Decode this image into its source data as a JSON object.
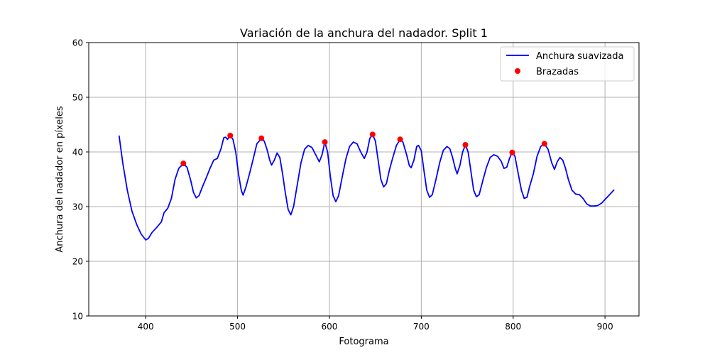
{
  "chart_data": {
    "type": "line",
    "title": "Variación de la anchura del nadador. Split 1",
    "xlabel": "Fotograma",
    "ylabel": "Anchura del nadador en píxeles",
    "xlim": [
      338,
      937
    ],
    "ylim": [
      10,
      60
    ],
    "xticks": [
      400,
      500,
      600,
      700,
      800,
      900
    ],
    "yticks": [
      10,
      20,
      30,
      40,
      50,
      60
    ],
    "grid": true,
    "legend_position": "top-right",
    "series": [
      {
        "name": "Anchura suavizada",
        "kind": "line",
        "color": "#0000ff",
        "points": [
          [
            371,
            43.0
          ],
          [
            375,
            38.0
          ],
          [
            380,
            33.0
          ],
          [
            385,
            29.2
          ],
          [
            390,
            26.8
          ],
          [
            395,
            25.0
          ],
          [
            400,
            23.9
          ],
          [
            403,
            24.2
          ],
          [
            407,
            25.3
          ],
          [
            412,
            26.2
          ],
          [
            417,
            27.2
          ],
          [
            420,
            28.9
          ],
          [
            424,
            29.7
          ],
          [
            428,
            31.5
          ],
          [
            432,
            35.0
          ],
          [
            436,
            37.0
          ],
          [
            441,
            37.9
          ],
          [
            445,
            37.2
          ],
          [
            449,
            34.8
          ],
          [
            452,
            32.6
          ],
          [
            455,
            31.6
          ],
          [
            458,
            32.0
          ],
          [
            462,
            33.7
          ],
          [
            466,
            35.3
          ],
          [
            470,
            37.0
          ],
          [
            474,
            38.5
          ],
          [
            478,
            38.8
          ],
          [
            482,
            40.6
          ],
          [
            485,
            42.6
          ],
          [
            487,
            42.7
          ],
          [
            489,
            42.3
          ],
          [
            492,
            43.0
          ],
          [
            495,
            42.3
          ],
          [
            498,
            40.0
          ],
          [
            501,
            36.0
          ],
          [
            504,
            33.0
          ],
          [
            506,
            32.1
          ],
          [
            509,
            33.5
          ],
          [
            513,
            36.0
          ],
          [
            517,
            38.7
          ],
          [
            521,
            41.5
          ],
          [
            526,
            42.5
          ],
          [
            529,
            42.0
          ],
          [
            532,
            40.5
          ],
          [
            535,
            38.5
          ],
          [
            537,
            37.6
          ],
          [
            540,
            38.5
          ],
          [
            543,
            39.8
          ],
          [
            546,
            39.0
          ],
          [
            549,
            36.0
          ],
          [
            552,
            32.5
          ],
          [
            555,
            29.5
          ],
          [
            558,
            28.5
          ],
          [
            561,
            30.0
          ],
          [
            565,
            34.0
          ],
          [
            569,
            38.0
          ],
          [
            573,
            40.5
          ],
          [
            577,
            41.2
          ],
          [
            581,
            40.8
          ],
          [
            585,
            39.5
          ],
          [
            589,
            38.2
          ],
          [
            592,
            39.5
          ],
          [
            595,
            41.8
          ],
          [
            598,
            40.0
          ],
          [
            601,
            35.5
          ],
          [
            604,
            32.0
          ],
          [
            607,
            30.9
          ],
          [
            610,
            32.0
          ],
          [
            614,
            35.5
          ],
          [
            618,
            38.8
          ],
          [
            622,
            41.0
          ],
          [
            626,
            41.8
          ],
          [
            630,
            41.5
          ],
          [
            634,
            40.0
          ],
          [
            638,
            38.8
          ],
          [
            641,
            40.0
          ],
          [
            644,
            42.5
          ],
          [
            647,
            43.2
          ],
          [
            650,
            42.0
          ],
          [
            653,
            38.5
          ],
          [
            656,
            35.0
          ],
          [
            659,
            33.6
          ],
          [
            662,
            34.2
          ],
          [
            665,
            36.5
          ],
          [
            669,
            39.0
          ],
          [
            673,
            41.2
          ],
          [
            677,
            42.3
          ],
          [
            680,
            41.8
          ],
          [
            684,
            39.5
          ],
          [
            687,
            37.5
          ],
          [
            689,
            37.1
          ],
          [
            692,
            38.5
          ],
          [
            695,
            41.0
          ],
          [
            697,
            41.2
          ],
          [
            700,
            40.2
          ],
          [
            703,
            36.5
          ],
          [
            706,
            33.0
          ],
          [
            709,
            31.7
          ],
          [
            712,
            32.2
          ],
          [
            716,
            35.0
          ],
          [
            720,
            38.0
          ],
          [
            724,
            40.3
          ],
          [
            728,
            41.0
          ],
          [
            731,
            40.6
          ],
          [
            734,
            39.0
          ],
          [
            737,
            37.0
          ],
          [
            739,
            36.0
          ],
          [
            742,
            37.5
          ],
          [
            745,
            40.0
          ],
          [
            748,
            41.3
          ],
          [
            751,
            40.0
          ],
          [
            754,
            36.5
          ],
          [
            757,
            33.0
          ],
          [
            760,
            31.8
          ],
          [
            763,
            32.2
          ],
          [
            767,
            34.8
          ],
          [
            771,
            37.2
          ],
          [
            775,
            39.0
          ],
          [
            779,
            39.5
          ],
          [
            783,
            39.2
          ],
          [
            787,
            38.3
          ],
          [
            790,
            37.0
          ],
          [
            793,
            37.2
          ],
          [
            796,
            38.8
          ],
          [
            799,
            40.0
          ],
          [
            802,
            39.2
          ],
          [
            805,
            36.5
          ],
          [
            809,
            33.0
          ],
          [
            812,
            31.5
          ],
          [
            815,
            31.7
          ],
          [
            818,
            33.7
          ],
          [
            822,
            36.0
          ],
          [
            826,
            39.2
          ],
          [
            830,
            41.0
          ],
          [
            834,
            41.5
          ],
          [
            838,
            40.5
          ],
          [
            842,
            38.0
          ],
          [
            845,
            36.8
          ],
          [
            848,
            38.2
          ],
          [
            851,
            39.0
          ],
          [
            854,
            38.5
          ],
          [
            857,
            37.0
          ],
          [
            860,
            35.0
          ],
          [
            864,
            33.0
          ],
          [
            868,
            32.3
          ],
          [
            872,
            32.2
          ],
          [
            876,
            31.5
          ],
          [
            880,
            30.5
          ],
          [
            884,
            30.1
          ],
          [
            888,
            30.1
          ],
          [
            892,
            30.2
          ],
          [
            896,
            30.6
          ],
          [
            900,
            31.3
          ],
          [
            905,
            32.2
          ],
          [
            910,
            33.1
          ]
        ]
      },
      {
        "name": "Brazadas",
        "kind": "scatter",
        "color": "#ff0000",
        "points": [
          [
            441,
            37.9
          ],
          [
            492,
            43.0
          ],
          [
            526,
            42.5
          ],
          [
            595,
            41.8
          ],
          [
            647,
            43.2
          ],
          [
            677,
            42.3
          ],
          [
            748,
            41.3
          ],
          [
            799,
            39.9
          ],
          [
            834,
            41.5
          ]
        ]
      }
    ]
  }
}
